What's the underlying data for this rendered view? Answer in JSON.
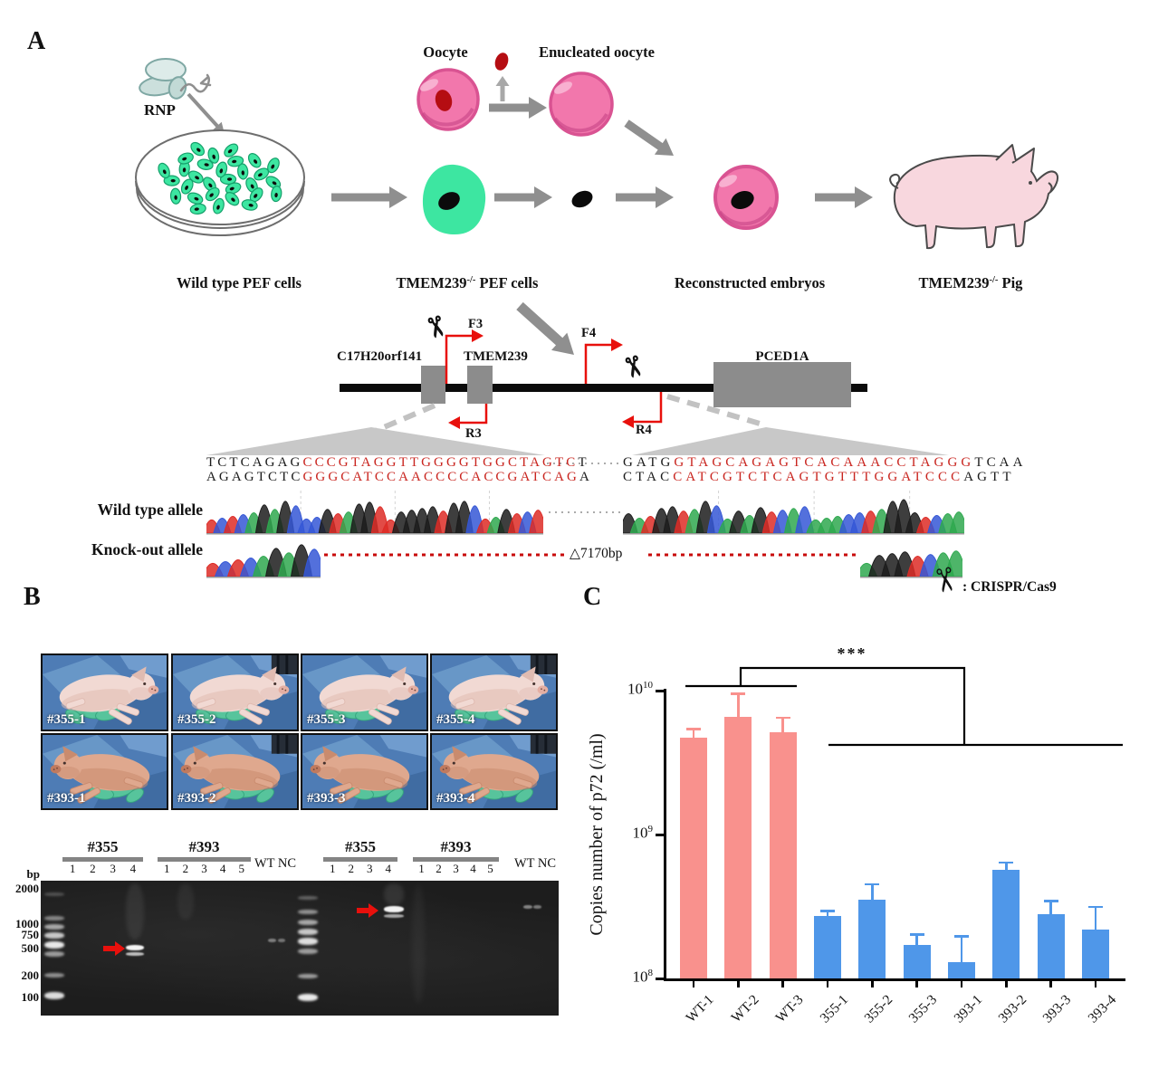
{
  "icons": {
    "scissors": "✂"
  },
  "panels": {
    "a": "A",
    "b": "B",
    "c": "C"
  },
  "panel_a": {
    "rnp_label": "RNP",
    "dish_label": "Wild type PEF cells",
    "oocyte_label": "Oocyte",
    "enucleated_label": "Enucleated oocyte",
    "pef_label": {
      "base": "TMEM239",
      "sup": "-/-",
      "rest": " PEF cells"
    },
    "embryo_label": "Reconstructed embryos",
    "pig_label": {
      "base": "TMEM239",
      "sup": "-/-",
      "rest": " Pig"
    },
    "gene_map": {
      "genes": [
        "C17H20orf141",
        "TMEM239",
        "PCED1A"
      ],
      "primers": [
        "F3",
        "R3",
        "F4",
        "R4"
      ]
    },
    "alleles": {
      "wild_type_label": "Wild type allele",
      "knockout_label": "Knock-out allele",
      "deletion_label": "△7170bp",
      "left_seq_top": {
        "pre": "TCTCAGAG",
        "red": "CCCGTAGGTTGGGGTGGCTAGTC",
        "post": "T"
      },
      "left_seq_bottom": {
        "pre": "AGAGTCTC",
        "red": "GGGCATCCAACCCCACCGATCAG",
        "post": "A"
      },
      "right_seq_top": {
        "pre": "GATG",
        "red": "GTAGCAGAGTCACAAACCTAGGG",
        "post": "TCAA"
      },
      "right_seq_bottom": {
        "pre": "CTAC",
        "red": "CATCGTCTCAGTGTTTGGATCCC",
        "post": "AGTT"
      }
    }
  },
  "panel_b": {
    "photo_labels": [
      [
        "#355-1",
        "#355-2",
        "#355-3",
        "#355-4"
      ],
      [
        "#393-1",
        "#393-2",
        "#393-3",
        "#393-4"
      ]
    ],
    "gel": {
      "bp_label": "bp",
      "ladder_labels": [
        "2000",
        "1000",
        "750",
        "500",
        "200",
        "100"
      ],
      "groups": [
        {
          "label": "#355",
          "lanes": [
            "1",
            "2",
            "3",
            "4"
          ]
        },
        {
          "label": "#393",
          "lanes": [
            "1",
            "2",
            "3",
            "4",
            "5"
          ]
        },
        {
          "label": "WT NC",
          "lanes": []
        },
        {
          "label": "#355",
          "lanes": [
            "1",
            "2",
            "3",
            "4"
          ]
        },
        {
          "label": "#393",
          "lanes": [
            "1",
            "2",
            "3",
            "4",
            "5"
          ]
        },
        {
          "label": "WT NC",
          "lanes": []
        }
      ]
    }
  },
  "panel_c": {
    "legend_text": ": CRISPR/Cas9",
    "significance": "***"
  },
  "chart_data": {
    "type": "bar",
    "title": "",
    "xlabel": "",
    "ylabel": "Copies number of p72 (/ml)",
    "yscale": "log",
    "ylim": [
      100000000,
      10000000000
    ],
    "yticks": [
      {
        "base": "10",
        "exp": "8",
        "value": 100000000
      },
      {
        "base": "10",
        "exp": "9",
        "value": 1000000000
      },
      {
        "base": "10",
        "exp": "10",
        "value": 10000000000
      }
    ],
    "categories": [
      "WT-1",
      "WT-2",
      "WT-3",
      "355-1",
      "355-2",
      "355-3",
      "393-1",
      "393-2",
      "393-3",
      "393-4"
    ],
    "values": [
      4700000000,
      6600000000,
      5100000000,
      270000000,
      350000000,
      170000000,
      130000000,
      570000000,
      280000000,
      220000000
    ],
    "errors_top": [
      5500000000,
      9700000000,
      6600000000,
      300000000,
      460000000,
      205000000,
      200000000,
      650000000,
      350000000,
      320000000
    ],
    "wt_color": "#F9918D",
    "ko_color": "#4F97E9",
    "wt_count": 3,
    "grid": false,
    "legend_position": "none",
    "significance": "***"
  }
}
